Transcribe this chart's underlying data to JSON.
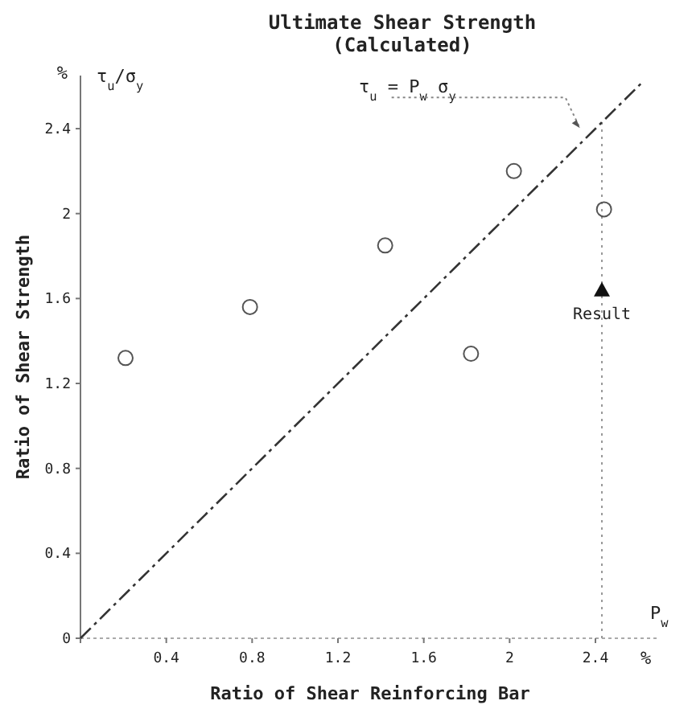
{
  "chart_data": {
    "type": "scatter",
    "title": "Ultimate Shear Strength",
    "subtitle": "(Calculated)",
    "xlabel": "Ratio of Shear Reinforcing Bar",
    "ylabel": "Ratio of Shear Strength",
    "xlim": [
      0,
      2.7
    ],
    "ylim": [
      0,
      2.65
    ],
    "xticks": [
      {
        "value": 0,
        "label": null
      },
      0.4,
      0.8,
      1.2,
      1.6,
      2.0,
      2.4
    ],
    "yticks": [
      0,
      0.4,
      0.8,
      1.2,
      1.6,
      2.0,
      2.4
    ],
    "grid": false,
    "marker": "circle",
    "series": [
      {
        "type": "scatter",
        "color": "#555555",
        "x": [
          0.21,
          0.79,
          1.42,
          2.02,
          2.44,
          1.82
        ],
        "values": [
          1.32,
          1.56,
          1.85,
          2.2,
          2.02,
          1.34
        ]
      },
      {
        "type": "scatter",
        "name": "Result",
        "marker": "triangle",
        "color": "#111111",
        "x": [
          2.43
        ],
        "values": [
          1.64
        ]
      },
      {
        "type": "line",
        "color": "#333333",
        "line_style": "dashdot",
        "marker": "none",
        "x": [
          0,
          2.62
        ],
        "values": [
          0,
          2.62
        ]
      }
    ],
    "ref_lines": [
      {
        "axis": "x",
        "value": 2.43,
        "line_style": "dotted",
        "color": "#999999"
      }
    ],
    "annotations": [
      "%",
      "τ$_{u}$/σ$_{y}$",
      "P$_{w}$",
      "%",
      {
        "text": "τ$_{u}$ = P$_{w}$ σ$_{y}$",
        "x": 2.35,
        "y": 2.38
      }
    ]
  }
}
